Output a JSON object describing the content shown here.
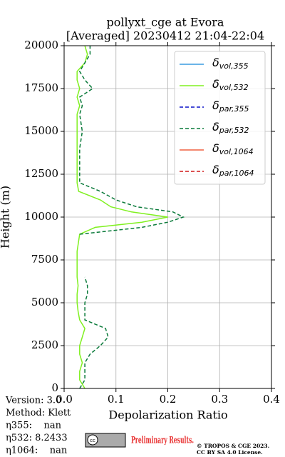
{
  "chart_data": {
    "type": "line",
    "title": "pollyxt_cge at Evora",
    "subtitle": "[Averaged] 20230412 21:04-22:04",
    "xlabel": "Depolarization Ratio",
    "ylabel": "Height (m)",
    "xlim": [
      0,
      0.4
    ],
    "xticks": [
      {
        "value": 0,
        "label": "0.0"
      },
      0.1,
      0.2,
      0.3,
      0.4
    ],
    "ylim": [
      0,
      20000
    ],
    "yticks": [
      0,
      2500,
      5000,
      7500,
      10000,
      12500,
      15000,
      17500,
      20000
    ],
    "grid": true,
    "legend": "upper right",
    "heights": [
      0,
      500,
      1000,
      1500,
      2000,
      2500,
      3000,
      3500,
      4000,
      4500,
      5000,
      5500,
      6000,
      6500,
      7000,
      8000,
      9000,
      9400,
      9700,
      10000,
      10300,
      10600,
      11000,
      11500,
      12000,
      13000,
      14000,
      15000,
      16000,
      16500,
      17000,
      17500,
      18000,
      18500,
      19000,
      19500,
      20000
    ],
    "series": [
      {
        "name": "δ",
        "subscript": "vol,355",
        "color": "#3a9ce0",
        "dashed": false,
        "values": [
          null,
          null,
          null,
          null,
          null,
          null,
          null,
          null,
          null,
          null,
          null,
          null,
          null,
          null,
          null,
          null,
          null,
          null,
          null,
          null,
          null,
          null,
          null,
          null,
          null,
          null,
          null,
          null,
          null,
          null,
          null,
          null,
          null,
          null,
          null,
          null,
          null
        ]
      },
      {
        "name": "δ",
        "subscript": "vol,532",
        "color": "#80f020",
        "dashed": false,
        "values": [
          0.04,
          0.03,
          0.03,
          0.035,
          0.03,
          0.03,
          0.035,
          0.04,
          0.03,
          0.027,
          0.025,
          0.025,
          0.027,
          0.025,
          0.025,
          0.025,
          0.03,
          0.06,
          0.15,
          0.2,
          0.13,
          0.09,
          0.07,
          0.028,
          0.025,
          0.025,
          0.025,
          0.025,
          0.025,
          0.03,
          0.025,
          0.03,
          0.025,
          0.025,
          0.04,
          0.045,
          0.04
        ]
      },
      {
        "name": "δ",
        "subscript": "par,355",
        "color": "#0a10c8",
        "dashed": true,
        "values": [
          null,
          null,
          null,
          null,
          null,
          null,
          null,
          null,
          null,
          null,
          null,
          null,
          null,
          null,
          null,
          null,
          null,
          null,
          null,
          null,
          null,
          null,
          null,
          null,
          null,
          null,
          null,
          null,
          null,
          null,
          null,
          null,
          null,
          null,
          null,
          null,
          null
        ]
      },
      {
        "name": "δ",
        "subscript": "par,532",
        "color": "#0a7a3a",
        "dashed": true,
        "values": [
          0.03,
          0.04,
          0.04,
          0.04,
          0.05,
          0.07,
          0.085,
          0.08,
          0.04,
          0.04,
          0.04,
          0.045,
          0.045,
          0.04,
          null,
          null,
          0.03,
          0.15,
          0.2,
          0.23,
          0.21,
          0.14,
          0.1,
          0.07,
          0.03,
          0.03,
          0.03,
          0.035,
          0.03,
          0.035,
          0.03,
          0.055,
          0.04,
          0.03,
          0.04,
          0.05,
          0.05
        ]
      },
      {
        "name": "δ",
        "subscript": "vol,1064",
        "color": "#f06040",
        "dashed": false,
        "values": [
          null,
          null,
          null,
          null,
          null,
          null,
          null,
          null,
          null,
          null,
          null,
          null,
          null,
          null,
          null,
          null,
          null,
          null,
          null,
          null,
          null,
          null,
          null,
          null,
          null,
          null,
          null,
          null,
          null,
          null,
          null,
          null,
          null,
          null,
          null,
          null,
          null
        ]
      },
      {
        "name": "δ",
        "subscript": "par,1064",
        "color": "#d01818",
        "dashed": true,
        "values": [
          null,
          null,
          null,
          null,
          null,
          null,
          null,
          null,
          null,
          null,
          null,
          null,
          null,
          null,
          null,
          null,
          null,
          null,
          null,
          null,
          null,
          null,
          null,
          null,
          null,
          null,
          null,
          null,
          null,
          null,
          null,
          null,
          null,
          null,
          null,
          null,
          null
        ]
      }
    ]
  },
  "info": [
    "Version: 3.0",
    "Method: Klett",
    "η355:    nan",
    "η532: 8.2433",
    "η1064:    nan"
  ],
  "logo": {
    "badge": "cc",
    "text": "Preliminary Results."
  },
  "copyright": [
    "© TROPOS & CGE 2023.",
    "CC BY SA 4.0 License."
  ]
}
